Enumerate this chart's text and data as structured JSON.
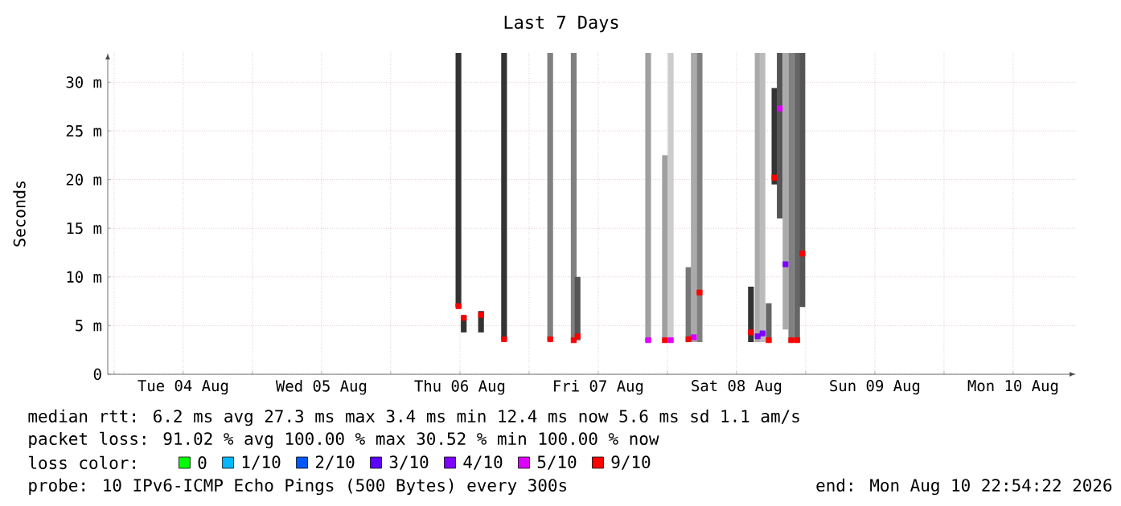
{
  "chart_data": {
    "type": "bar",
    "title": "Last 7 Days",
    "ylabel": "Seconds",
    "xlim": [
      "2026-08-03T22:54",
      "2026-08-10T22:54"
    ],
    "xticks": [
      {
        "value": "2026-08-04T00:00",
        "label": null
      },
      {
        "value": "2026-08-04T12:00",
        "label": "Tue 04 Aug"
      },
      {
        "value": "2026-08-05T00:00",
        "label": null
      },
      {
        "value": "2026-08-05T12:00",
        "label": "Wed 05 Aug"
      },
      {
        "value": "2026-08-06T00:00",
        "label": null
      },
      {
        "value": "2026-08-06T12:00",
        "label": "Thu 06 Aug"
      },
      {
        "value": "2026-08-07T00:00",
        "label": null
      },
      {
        "value": "2026-08-07T12:00",
        "label": "Fri 07 Aug"
      },
      {
        "value": "2026-08-08T00:00",
        "label": null
      },
      {
        "value": "2026-08-08T12:00",
        "label": "Sat 08 Aug"
      },
      {
        "value": "2026-08-09T00:00",
        "label": null
      },
      {
        "value": "2026-08-09T12:00",
        "label": "Sun 09 Aug"
      },
      {
        "value": "2026-08-10T00:00",
        "label": null
      },
      {
        "value": "2026-08-10T12:00",
        "label": "Mon 10 Aug"
      }
    ],
    "ylim": [
      0,
      33
    ],
    "yticks": [
      0,
      {
        "value": 5,
        "label": "5 m"
      },
      {
        "value": 10,
        "label": "10 m"
      },
      {
        "value": 15,
        "label": "15 m"
      },
      {
        "value": 20,
        "label": "20 m"
      },
      {
        "value": 25,
        "label": "25 m"
      },
      {
        "value": 30,
        "label": "30 m"
      }
    ],
    "grid": true,
    "legend": "bottom",
    "series": [
      {
        "x": [
          "2026-08-06T11:45",
          "2026-08-06T12:40",
          "2026-08-06T15:40",
          "2026-08-06T19:40",
          "2026-08-07T03:40",
          "2026-08-07T07:45",
          "2026-08-07T08:25",
          "2026-08-07T20:40",
          "2026-08-07T23:35",
          "2026-08-08T00:35",
          "2026-08-08T03:40",
          "2026-08-08T04:35",
          "2026-08-08T05:35",
          "2026-08-08T14:30",
          "2026-08-08T15:40",
          "2026-08-08T16:30",
          "2026-08-08T17:35",
          "2026-08-08T18:35",
          "2026-08-08T19:30",
          "2026-08-08T20:30",
          "2026-08-08T21:30",
          "2026-08-08T22:30",
          "2026-08-08T23:25"
        ],
        "base": [
          6.9,
          4.3,
          4.3,
          3.6,
          3.5,
          3.5,
          3.5,
          3.3,
          3.3,
          3.3,
          3.3,
          3.3,
          3.3,
          3.3,
          3.3,
          3.3,
          3.3,
          19.5,
          16,
          4.6,
          3.3,
          3.3,
          6.9
        ],
        "values": [
          26.1,
          1.7,
          2.2,
          29.4,
          29.5,
          29.5,
          6.5,
          29.7,
          19.2,
          29.7,
          7.7,
          29.7,
          29.7,
          5.7,
          29.7,
          29.7,
          4,
          9.9,
          17,
          28.4,
          29.7,
          29.7,
          26.1
        ],
        "colors": [
          "#333333",
          "#333333",
          "#333333",
          "#333333",
          "#808080",
          "#808080",
          "#555555",
          "#a0a0a0",
          "#a0a0a0",
          "#cccccc",
          "#777777",
          "#aaaaaa",
          "#808080",
          "#333333",
          "#aaaaaa",
          "#bbbbbb",
          "#666666",
          "#333333",
          "#555555",
          "#aaaaaa",
          "#808080",
          "#666666",
          "#555555"
        ]
      },
      {
        "type": "scatter",
        "name": "0",
        "color": "#00ff00"
      },
      {
        "type": "scatter",
        "name": "1/10",
        "color": "#00b8ff"
      },
      {
        "type": "scatter",
        "name": "2/10",
        "color": "#0059ff"
      },
      {
        "type": "scatter",
        "name": "3/10",
        "color": "#5e00ff"
      },
      {
        "type": "scatter",
        "name": "4/10",
        "color": "#7e00ff",
        "x": [
          "2026-08-08T15:40",
          "2026-08-08T16:30",
          "2026-08-08T20:30"
        ],
        "values": [
          3.9,
          4.2,
          11.3
        ]
      },
      {
        "type": "scatter",
        "name": "5/10",
        "color": "#dd00ff",
        "x": [
          "2026-08-07T20:40",
          "2026-08-08T00:35",
          "2026-08-08T04:35",
          "2026-08-08T19:30"
        ],
        "values": [
          3.5,
          3.5,
          3.8,
          27.3
        ]
      },
      {
        "type": "scatter",
        "name": "9/10",
        "color": "#ff0000",
        "x": [
          "2026-08-06T11:45",
          "2026-08-06T12:40",
          "2026-08-06T15:40",
          "2026-08-06T19:40",
          "2026-08-07T03:40",
          "2026-08-07T07:45",
          "2026-08-07T08:25",
          "2026-08-07T23:35",
          "2026-08-08T03:40",
          "2026-08-08T05:35",
          "2026-08-08T14:30",
          "2026-08-08T17:35",
          "2026-08-08T18:35",
          "2026-08-08T21:30",
          "2026-08-08T22:30",
          "2026-08-08T23:25"
        ],
        "values": [
          7.0,
          5.8,
          6.1,
          3.6,
          3.6,
          3.5,
          3.9,
          3.5,
          3.6,
          8.4,
          4.3,
          3.5,
          20.2,
          3.5,
          3.5,
          12.4
        ]
      }
    ],
    "marker": "square",
    "annotations": [
      "median rtt:  6.2 ms avg  27.3 ms max  3.4 ms min  12.4 ms now  5.6 ms sd  1.1  am/s",
      "packet loss: 91.02 % avg  100.00 % max  30.52 % min  100.00 % now",
      "loss color:",
      "probe:        10 IPv6-ICMP Echo Pings (500 Bytes) every 300s",
      "end: Mon Aug 10 22:54:22 2026"
    ]
  }
}
